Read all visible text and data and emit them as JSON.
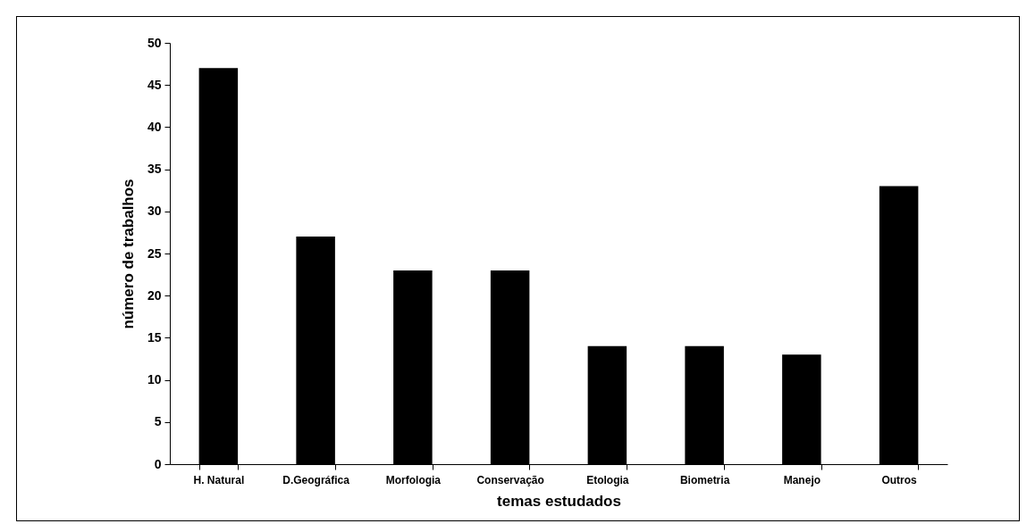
{
  "chart_data": {
    "type": "bar",
    "xlabel": "temas estudados",
    "ylabel": "número de trabalhos",
    "categories": [
      "H. Natural",
      "D.Geográfica",
      "Morfologia",
      "Conservação",
      "Etologia",
      "Biometria",
      "Manejo",
      "Outros"
    ],
    "values": [
      47,
      27,
      23,
      23,
      14,
      14,
      13,
      33
    ],
    "color": "#000000",
    "ylim": [
      0,
      50
    ],
    "yticks": [
      0,
      5,
      10,
      15,
      20,
      25,
      30,
      35,
      40,
      45,
      50
    ],
    "grid": false
  }
}
